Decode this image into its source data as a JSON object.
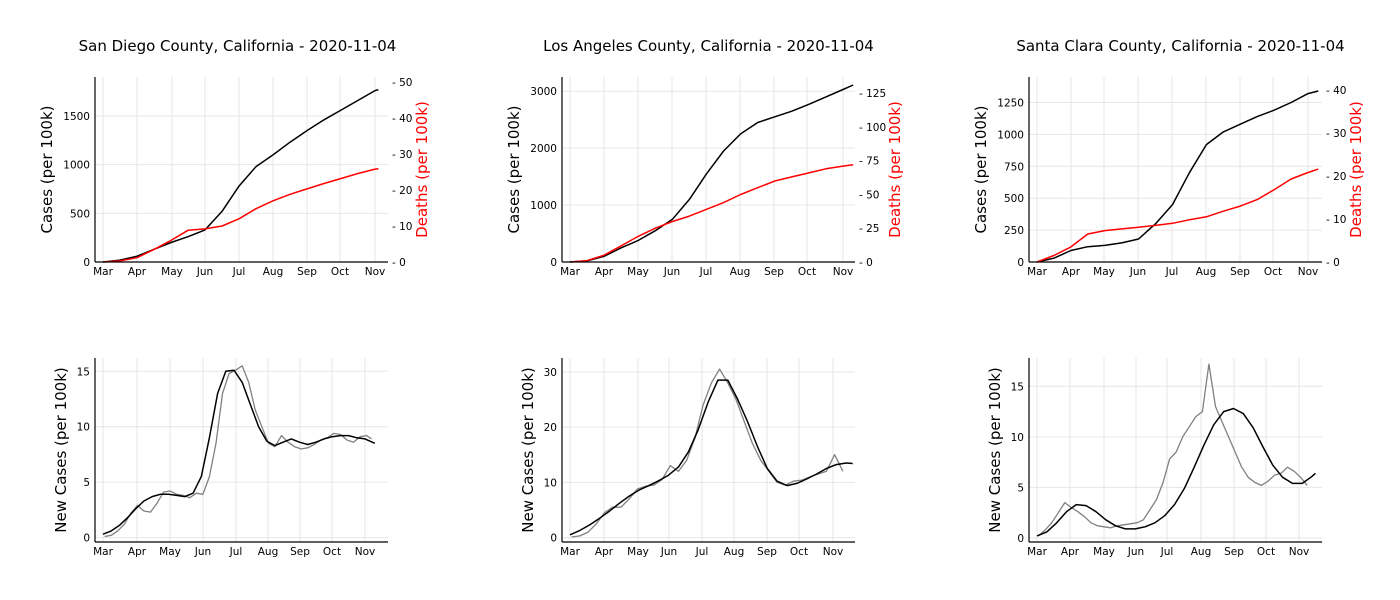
{
  "chart_data": [
    {
      "type": "line",
      "title": "San Diego County, California - 2020-11-04",
      "ylabel": "Cases (per 100k)",
      "y2label": "Deaths (per 100k)",
      "x_ticks": [
        "Mar",
        "Apr",
        "May",
        "Jun",
        "Jul",
        "Aug",
        "Sep",
        "Oct",
        "Nov"
      ],
      "xlim": [
        0,
        8.1
      ],
      "ylim": [
        0,
        1900
      ],
      "yticks": [
        0,
        500,
        1000,
        1500
      ],
      "y2lim": [
        0,
        51.4
      ],
      "y2ticks": [
        0,
        10,
        20,
        30,
        40,
        50
      ],
      "grid": true,
      "series": [
        {
          "axis": "left",
          "color": "#000000",
          "x": [
            0,
            0.5,
            1,
            1.5,
            2,
            2.5,
            3,
            3.5,
            4,
            4.5,
            5,
            5.5,
            6,
            6.5,
            7,
            7.5,
            8,
            8.1
          ],
          "y": [
            0,
            20,
            60,
            130,
            200,
            260,
            330,
            520,
            780,
            980,
            1100,
            1230,
            1350,
            1460,
            1560,
            1660,
            1760,
            1770
          ]
        },
        {
          "axis": "right",
          "color": "#ff0000",
          "x": [
            0,
            0.5,
            1,
            1.5,
            2,
            2.5,
            3,
            3.5,
            4,
            4.5,
            5,
            5.5,
            6,
            6.5,
            7,
            7.5,
            8,
            8.1
          ],
          "y": [
            0,
            0.3,
            1.2,
            3.5,
            6,
            8.8,
            9.2,
            10,
            12,
            14.8,
            17,
            18.8,
            20.3,
            21.8,
            23.2,
            24.6,
            25.8,
            25.9
          ]
        }
      ]
    },
    {
      "type": "line",
      "title": "Los Angeles County, California - 2020-11-04",
      "ylabel": "Cases (per 100k)",
      "y2label": "Deaths (per 100k)",
      "x_ticks": [
        "Mar",
        "Apr",
        "May",
        "Jun",
        "Jul",
        "Aug",
        "Sep",
        "Oct",
        "Nov"
      ],
      "xlim": [
        0,
        8.3
      ],
      "ylim": [
        0,
        3250
      ],
      "yticks": [
        0,
        1000,
        2000,
        3000
      ],
      "y2lim": [
        0,
        137
      ],
      "y2ticks": [
        0,
        25,
        50,
        75,
        100,
        125
      ],
      "grid": true,
      "series": [
        {
          "axis": "left",
          "color": "#000000",
          "x": [
            0,
            0.5,
            1,
            1.5,
            2,
            2.5,
            3,
            3.5,
            4,
            4.5,
            5,
            5.5,
            6,
            6.5,
            7,
            7.5,
            8,
            8.3
          ],
          "y": [
            0,
            20,
            100,
            250,
            380,
            550,
            750,
            1100,
            1550,
            1950,
            2250,
            2450,
            2550,
            2650,
            2770,
            2900,
            3030,
            3110
          ]
        },
        {
          "axis": "right",
          "color": "#ff0000",
          "x": [
            0,
            0.5,
            1,
            1.5,
            2,
            2.5,
            3,
            3.5,
            4,
            4.5,
            5,
            5.5,
            6,
            6.5,
            7,
            7.5,
            8,
            8.3
          ],
          "y": [
            0,
            1,
            5,
            12,
            19,
            25,
            30,
            34,
            39,
            44,
            50,
            55,
            60,
            63,
            66,
            69,
            71,
            72
          ]
        }
      ]
    },
    {
      "type": "line",
      "title": "Santa Clara County, California - 2020-11-04",
      "ylabel": "Cases (per 100k)",
      "y2label": "Deaths (per 100k)",
      "x_ticks": [
        "Mar",
        "Apr",
        "May",
        "Jun",
        "Jul",
        "Aug",
        "Sep",
        "Oct",
        "Nov"
      ],
      "xlim": [
        0,
        8.3
      ],
      "ylim": [
        0,
        1450
      ],
      "yticks": [
        0,
        250,
        500,
        750,
        1000,
        1250
      ],
      "y2lim": [
        0,
        43
      ],
      "y2ticks": [
        0,
        10,
        20,
        30,
        40
      ],
      "grid": true,
      "series": [
        {
          "axis": "left",
          "color": "#000000",
          "x": [
            0,
            0.5,
            1,
            1.5,
            2,
            2.5,
            3,
            3.5,
            4,
            4.5,
            5,
            5.5,
            6,
            6.5,
            7,
            7.5,
            8,
            8.3
          ],
          "y": [
            0,
            30,
            90,
            120,
            130,
            150,
            180,
            300,
            450,
            700,
            920,
            1020,
            1080,
            1140,
            1190,
            1250,
            1320,
            1340
          ]
        },
        {
          "axis": "right",
          "color": "#ff0000",
          "x": [
            0,
            0.5,
            1,
            1.5,
            2,
            2.5,
            3,
            3.5,
            4,
            4.5,
            5,
            5.5,
            6,
            6.5,
            7,
            7.5,
            8,
            8.3
          ],
          "y": [
            0,
            1.5,
            3.5,
            6.5,
            7.3,
            7.7,
            8.1,
            8.5,
            9,
            9.8,
            10.5,
            11.8,
            13,
            14.5,
            16.8,
            19.3,
            20.8,
            21.6
          ]
        }
      ]
    },
    {
      "type": "line",
      "ylabel": "New Cases (per 100k)",
      "x_ticks": [
        "Mar",
        "Apr",
        "May",
        "Jun",
        "Jul",
        "Aug",
        "Sep",
        "Oct",
        "Nov"
      ],
      "xlim": [
        0,
        8.3
      ],
      "ylim": [
        -0.4,
        16.2
      ],
      "yticks": [
        0,
        5,
        10,
        15
      ],
      "grid": true,
      "series": [
        {
          "name": "",
          "color": "#808080",
          "x": [
            0.05,
            0.25,
            0.45,
            0.65,
            0.85,
            1.05,
            1.25,
            1.45,
            1.65,
            1.85,
            2.05,
            2.25,
            2.45,
            2.65,
            2.85,
            3.05,
            3.25,
            3.45,
            3.65,
            3.85,
            4.05,
            4.25,
            4.45,
            4.65,
            4.85,
            5.05,
            5.25,
            5.45,
            5.65,
            5.85,
            6.05,
            6.25,
            6.45,
            6.65,
            6.85,
            7.05,
            7.25,
            7.45,
            7.65,
            7.85,
            8.05,
            8.2
          ],
          "y": [
            0.1,
            0.2,
            0.6,
            1.2,
            2.2,
            2.9,
            2.4,
            2.3,
            3.1,
            4.1,
            4.2,
            3.9,
            3.8,
            3.6,
            4.0,
            3.9,
            5.5,
            8.5,
            13.0,
            14.8,
            15.1,
            15.5,
            14.0,
            11.5,
            10.0,
            8.5,
            8.2,
            9.2,
            8.6,
            8.2,
            8.0,
            8.1,
            8.4,
            8.8,
            9.0,
            9.4,
            9.3,
            8.8,
            8.6,
            9.1,
            9.2,
            8.9
          ]
        },
        {
          "name": "",
          "color": "#000000",
          "x": [
            0,
            0.25,
            0.5,
            0.75,
            1,
            1.25,
            1.5,
            1.75,
            2,
            2.25,
            2.5,
            2.75,
            3,
            3.25,
            3.5,
            3.75,
            4,
            4.25,
            4.5,
            4.75,
            5,
            5.25,
            5.5,
            5.75,
            6,
            6.25,
            6.5,
            6.75,
            7,
            7.25,
            7.5,
            7.75,
            8,
            8.3
          ],
          "y": [
            0.3,
            0.6,
            1.1,
            1.8,
            2.6,
            3.3,
            3.7,
            3.9,
            3.9,
            3.8,
            3.7,
            4.0,
            5.5,
            9.0,
            13.0,
            15.0,
            15.1,
            14.0,
            12.0,
            10.0,
            8.7,
            8.3,
            8.6,
            8.9,
            8.6,
            8.4,
            8.6,
            8.9,
            9.1,
            9.2,
            9.2,
            9.0,
            8.9,
            8.5
          ]
        }
      ]
    },
    {
      "type": "line",
      "ylabel": "New Cases (per 100k)",
      "x_ticks": [
        "Mar",
        "Apr",
        "May",
        "Jun",
        "Jul",
        "Aug",
        "Sep",
        "Oct",
        "Nov"
      ],
      "xlim": [
        0,
        8.6
      ],
      "ylim": [
        -0.8,
        32.5
      ],
      "yticks": [
        0,
        10,
        20,
        30
      ],
      "grid": true,
      "series": [
        {
          "name": "",
          "color": "#808080",
          "x": [
            0.05,
            0.3,
            0.55,
            0.8,
            1.05,
            1.3,
            1.55,
            1.8,
            2.05,
            2.3,
            2.55,
            2.8,
            3.05,
            3.3,
            3.55,
            3.8,
            4.05,
            4.3,
            4.55,
            4.8,
            5.05,
            5.3,
            5.55,
            5.8,
            6.05,
            6.3,
            6.55,
            6.8,
            7.05,
            7.3,
            7.55,
            7.8,
            8.05,
            8.3
          ],
          "y": [
            0.1,
            0.3,
            1.0,
            2.5,
            4.5,
            5.5,
            5.5,
            7.0,
            8.8,
            9.3,
            9.5,
            10.5,
            13.0,
            12.0,
            14.0,
            18.0,
            24.0,
            28.0,
            30.5,
            28.0,
            25.0,
            21.0,
            17.0,
            14.0,
            12.0,
            10.0,
            9.5,
            10.2,
            10.4,
            11.0,
            11.5,
            12.0,
            15.0,
            12.0
          ]
        },
        {
          "name": "",
          "color": "#000000",
          "x": [
            0,
            0.3,
            0.6,
            0.9,
            1.2,
            1.5,
            1.8,
            2.1,
            2.4,
            2.7,
            3.0,
            3.3,
            3.6,
            3.9,
            4.2,
            4.5,
            4.8,
            5.1,
            5.4,
            5.7,
            6.0,
            6.3,
            6.6,
            6.9,
            7.2,
            7.5,
            7.8,
            8.1,
            8.4,
            8.6
          ],
          "y": [
            0.5,
            1.3,
            2.3,
            3.5,
            4.8,
            6.2,
            7.5,
            8.6,
            9.4,
            10.3,
            11.3,
            12.8,
            15.5,
            19.5,
            24.5,
            28.5,
            28.5,
            25.0,
            21.0,
            16.5,
            12.5,
            10.2,
            9.4,
            9.8,
            10.6,
            11.5,
            12.5,
            13.2,
            13.5,
            13.4
          ]
        }
      ]
    },
    {
      "type": "line",
      "ylabel": "New Cases (per 100k)",
      "x_ticks": [
        "Mar",
        "Apr",
        "May",
        "Jun",
        "Jul",
        "Aug",
        "Sep",
        "Oct",
        "Nov"
      ],
      "xlim": [
        0,
        8.5
      ],
      "ylim": [
        -0.4,
        17.8
      ],
      "yticks": [
        0,
        5,
        10,
        15
      ],
      "grid": true,
      "series": [
        {
          "name": "",
          "color": "#808080",
          "x": [
            0.05,
            0.25,
            0.45,
            0.65,
            0.85,
            1.05,
            1.25,
            1.45,
            1.65,
            1.85,
            2.05,
            2.25,
            2.45,
            2.65,
            2.85,
            3.05,
            3.25,
            3.45,
            3.65,
            3.85,
            4.05,
            4.25,
            4.45,
            4.65,
            4.85,
            5.05,
            5.25,
            5.45,
            5.65,
            5.85,
            6.05,
            6.25,
            6.45,
            6.65,
            6.85,
            7.05,
            7.25,
            7.45,
            7.65,
            7.85,
            8.05,
            8.25
          ],
          "y": [
            0.2,
            0.8,
            1.5,
            2.5,
            3.5,
            3.0,
            2.6,
            2.1,
            1.5,
            1.2,
            1.1,
            1.0,
            1.2,
            1.3,
            1.4,
            1.5,
            1.8,
            2.8,
            3.8,
            5.5,
            7.8,
            8.5,
            10.0,
            11.0,
            12.0,
            12.5,
            17.2,
            13.0,
            11.5,
            10.0,
            8.5,
            7.0,
            6.0,
            5.5,
            5.2,
            5.6,
            6.2,
            6.4,
            7.0,
            6.6,
            6.0,
            5.2
          ]
        },
        {
          "name": "",
          "color": "#000000",
          "x": [
            0,
            0.3,
            0.6,
            0.9,
            1.2,
            1.5,
            1.8,
            2.1,
            2.4,
            2.7,
            3.0,
            3.3,
            3.6,
            3.9,
            4.2,
            4.5,
            4.8,
            5.1,
            5.4,
            5.7,
            6.0,
            6.3,
            6.6,
            6.9,
            7.2,
            7.5,
            7.8,
            8.1,
            8.4,
            8.5
          ],
          "y": [
            0.2,
            0.6,
            1.5,
            2.6,
            3.3,
            3.2,
            2.6,
            1.8,
            1.2,
            0.9,
            0.9,
            1.1,
            1.5,
            2.2,
            3.3,
            4.9,
            7.0,
            9.2,
            11.2,
            12.5,
            12.8,
            12.3,
            10.9,
            9.0,
            7.2,
            6.0,
            5.4,
            5.4,
            6.1,
            6.4
          ]
        }
      ]
    }
  ]
}
